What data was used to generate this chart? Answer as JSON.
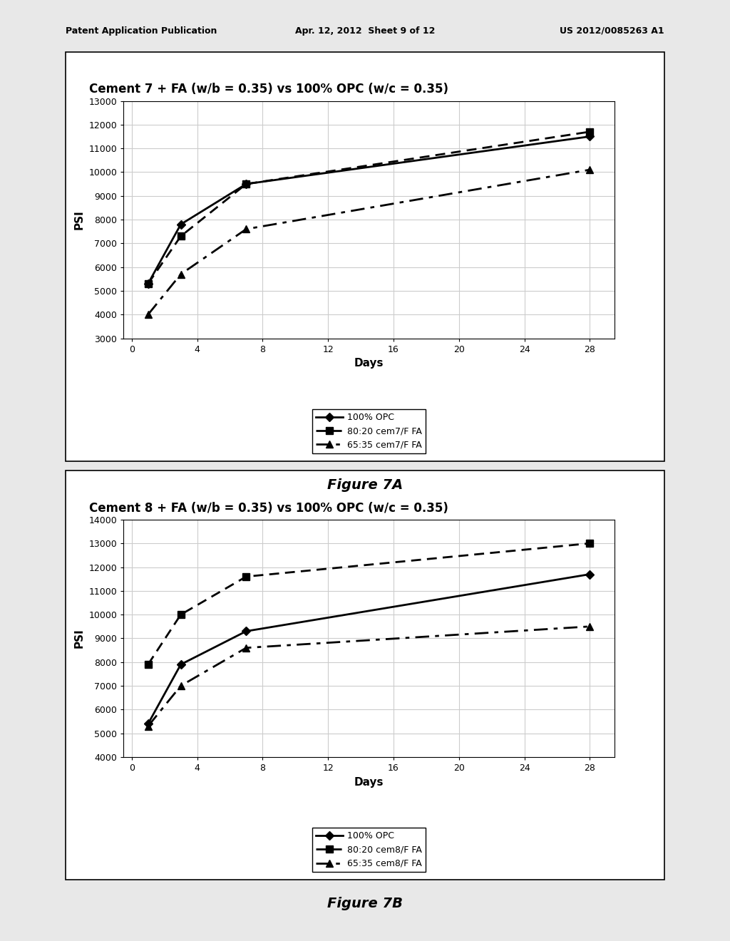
{
  "fig7a": {
    "title": "Cement 7 + FA (w/b = 0.35) vs 100% OPC (w/c = 0.35)",
    "series": [
      {
        "label": "100% OPC",
        "x": [
          1,
          3,
          7,
          28
        ],
        "y": [
          5300,
          7800,
          9500,
          11500
        ],
        "marker": "D",
        "markersize": 6,
        "linewidth": 2.0,
        "style": "solid"
      },
      {
        "label": "80:20 cem7/F FA",
        "x": [
          1,
          3,
          7,
          28
        ],
        "y": [
          5300,
          7300,
          9500,
          11700
        ],
        "marker": "s",
        "markersize": 7,
        "linewidth": 2.0,
        "style": "dashed"
      },
      {
        "label": "65:35 cem7/F FA",
        "x": [
          1,
          3,
          7,
          28
        ],
        "y": [
          4000,
          5700,
          7600,
          10100
        ],
        "marker": "^",
        "markersize": 7,
        "linewidth": 2.0,
        "style": "dashdot"
      }
    ],
    "ylabel": "PSI",
    "xlabel": "Days",
    "ylim": [
      3000,
      13000
    ],
    "yticks": [
      3000,
      4000,
      5000,
      6000,
      7000,
      8000,
      9000,
      10000,
      11000,
      12000,
      13000
    ],
    "xticks": [
      0,
      4,
      8,
      12,
      16,
      20,
      24,
      28
    ],
    "xlim": [
      -0.5,
      29.5
    ]
  },
  "fig7b": {
    "title": "Cement 8 + FA (w/b = 0.35) vs 100% OPC (w/c = 0.35)",
    "series": [
      {
        "label": "100% OPC",
        "x": [
          1,
          3,
          7,
          28
        ],
        "y": [
          5400,
          7900,
          9300,
          11700
        ],
        "marker": "D",
        "markersize": 6,
        "linewidth": 2.0,
        "style": "solid"
      },
      {
        "label": "80:20 cem8/F FA",
        "x": [
          1,
          3,
          7,
          28
        ],
        "y": [
          7900,
          10000,
          11600,
          13000
        ],
        "marker": "s",
        "markersize": 7,
        "linewidth": 2.0,
        "style": "dashed"
      },
      {
        "label": "65:35 cem8/F FA",
        "x": [
          1,
          3,
          7,
          28
        ],
        "y": [
          5300,
          7000,
          8600,
          9500
        ],
        "marker": "^",
        "markersize": 7,
        "linewidth": 2.0,
        "style": "dashdot"
      }
    ],
    "ylabel": "PSI",
    "xlabel": "Days",
    "ylim": [
      4000,
      14000
    ],
    "yticks": [
      4000,
      5000,
      6000,
      7000,
      8000,
      9000,
      10000,
      11000,
      12000,
      13000,
      14000
    ],
    "xticks": [
      0,
      4,
      8,
      12,
      16,
      20,
      24,
      28
    ],
    "xlim": [
      -0.5,
      29.5
    ]
  },
  "fig_labels": [
    "Figure 7A",
    "Figure 7B"
  ],
  "header_left": "Patent Application Publication",
  "header_mid": "Apr. 12, 2012  Sheet 9 of 12",
  "header_right": "US 2012/0085263 A1",
  "page_bg": "#e8e8e8",
  "chart_bg": "#ffffff",
  "grid_color": "#cccccc",
  "font_size_header": 9,
  "font_size_title": 12,
  "font_size_axis_label": 11,
  "font_size_tick": 9,
  "font_size_legend": 9,
  "font_size_fig_label": 14
}
